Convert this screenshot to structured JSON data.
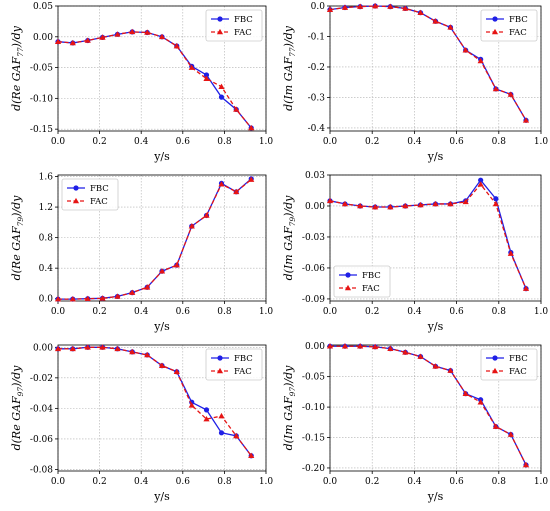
{
  "colors": {
    "fbc": "#1f1fe6",
    "fac": "#e61414"
  },
  "chart_data": [
    {
      "type": "line",
      "ylabel": {
        "pre": "d(Re GAF",
        "sub": "77",
        "post": ")/dy"
      },
      "xlabel": "y/s",
      "xlim": [
        0,
        1.0
      ],
      "ylim": [
        -0.153,
        0.05
      ],
      "xticks": [
        "0.0",
        "0.2",
        "0.4",
        "0.6",
        "0.8",
        "1.0"
      ],
      "yticks": [
        "0.05",
        "0.00",
        "-0.05",
        "-0.10",
        "-0.15"
      ],
      "legend": "top-right",
      "x": [
        0,
        0.071,
        0.143,
        0.214,
        0.286,
        0.357,
        0.429,
        0.5,
        0.571,
        0.643,
        0.714,
        0.786,
        0.857,
        0.929
      ],
      "series": [
        {
          "name": "FBC",
          "values": [
            -0.008,
            -0.01,
            -0.006,
            -0.001,
            0.004,
            0.008,
            0.007,
            0.0,
            -0.015,
            -0.048,
            -0.062,
            -0.098,
            -0.118,
            -0.148
          ]
        },
        {
          "name": "FAC",
          "values": [
            -0.008,
            -0.01,
            -0.006,
            -0.001,
            0.004,
            0.008,
            0.007,
            0.0,
            -0.015,
            -0.05,
            -0.068,
            -0.081,
            -0.118,
            -0.148
          ]
        }
      ]
    },
    {
      "type": "line",
      "ylabel": {
        "pre": "d(Im GAF",
        "sub": "77",
        "post": ")/dy"
      },
      "xlabel": "y/s",
      "xlim": [
        0,
        1.0
      ],
      "ylim": [
        -0.41,
        0.0
      ],
      "xticks": [
        "0.0",
        "0.2",
        "0.4",
        "0.6",
        "0.8",
        "1.0"
      ],
      "yticks": [
        "0.0",
        "-0.1",
        "-0.2",
        "-0.3",
        "-0.4"
      ],
      "legend": "top-right",
      "x": [
        0,
        0.071,
        0.143,
        0.214,
        0.286,
        0.357,
        0.429,
        0.5,
        0.571,
        0.643,
        0.714,
        0.786,
        0.857,
        0.929
      ],
      "series": [
        {
          "name": "FBC",
          "values": [
            -0.012,
            -0.005,
            -0.002,
            0.0,
            -0.002,
            -0.008,
            -0.022,
            -0.05,
            -0.07,
            -0.145,
            -0.175,
            -0.272,
            -0.29,
            -0.375
          ]
        },
        {
          "name": "FAC",
          "values": [
            -0.012,
            -0.005,
            -0.002,
            0.0,
            -0.002,
            -0.008,
            -0.022,
            -0.05,
            -0.07,
            -0.145,
            -0.18,
            -0.272,
            -0.29,
            -0.375
          ]
        }
      ]
    },
    {
      "type": "line",
      "ylabel": {
        "pre": "d(Re GAF",
        "sub": "79",
        "post": ")/dy"
      },
      "xlabel": "y/s",
      "xlim": [
        0,
        1.0
      ],
      "ylim": [
        -0.03,
        1.62
      ],
      "xticks": [
        "0.0",
        "0.2",
        "0.4",
        "0.6",
        "0.8",
        "1.0"
      ],
      "yticks": [
        "1.6",
        "1.2",
        "0.8",
        "0.4",
        "0.0"
      ],
      "legend": "top-left",
      "x": [
        0,
        0.071,
        0.143,
        0.214,
        0.286,
        0.357,
        0.429,
        0.5,
        0.571,
        0.643,
        0.714,
        0.786,
        0.857,
        0.929
      ],
      "series": [
        {
          "name": "FBC",
          "values": [
            -0.005,
            -0.005,
            0.0,
            0.005,
            0.03,
            0.08,
            0.15,
            0.36,
            0.44,
            0.95,
            1.09,
            1.51,
            1.4,
            1.57
          ]
        },
        {
          "name": "FAC",
          "values": [
            -0.005,
            -0.005,
            0.0,
            0.005,
            0.03,
            0.08,
            0.15,
            0.36,
            0.44,
            0.95,
            1.09,
            1.5,
            1.4,
            1.56
          ]
        }
      ]
    },
    {
      "type": "line",
      "ylabel": {
        "pre": "d(Im GAF",
        "sub": "79",
        "post": ")/dy"
      },
      "xlabel": "y/s",
      "xlim": [
        0,
        1.0
      ],
      "ylim": [
        -0.092,
        0.03
      ],
      "xticks": [
        "0.0",
        "0.2",
        "0.4",
        "0.6",
        "0.8",
        "1.0"
      ],
      "yticks": [
        "0.03",
        "0.00",
        "-0.03",
        "-0.06",
        "-0.09"
      ],
      "legend": "bottom-left",
      "x": [
        0,
        0.071,
        0.143,
        0.214,
        0.286,
        0.357,
        0.429,
        0.5,
        0.571,
        0.643,
        0.714,
        0.786,
        0.857,
        0.929
      ],
      "series": [
        {
          "name": "FBC",
          "values": [
            0.005,
            0.002,
            0.0,
            -0.001,
            -0.001,
            0.0,
            0.001,
            0.002,
            0.002,
            0.005,
            0.025,
            0.007,
            -0.045,
            -0.08
          ]
        },
        {
          "name": "FAC",
          "values": [
            0.005,
            0.002,
            0.0,
            -0.001,
            -0.001,
            0.0,
            0.001,
            0.002,
            0.002,
            0.004,
            0.021,
            0.002,
            -0.046,
            -0.08
          ]
        }
      ]
    },
    {
      "type": "line",
      "ylabel": {
        "pre": "d(Re GAF",
        "sub": "97",
        "post": ")/dy"
      },
      "xlabel": "y/s",
      "xlim": [
        0,
        1.0
      ],
      "ylim": [
        -0.081,
        0.0015
      ],
      "xticks": [
        "0.0",
        "0.2",
        "0.4",
        "0.6",
        "0.8",
        "1.0"
      ],
      "yticks": [
        "0.00",
        "-0.02",
        "-0.04",
        "-0.06",
        "-0.08"
      ],
      "legend": "top-right",
      "x": [
        0,
        0.071,
        0.143,
        0.214,
        0.286,
        0.357,
        0.429,
        0.5,
        0.571,
        0.643,
        0.714,
        0.786,
        0.857,
        0.929
      ],
      "series": [
        {
          "name": "FBC",
          "values": [
            -0.001,
            -0.001,
            0.0,
            0.0,
            -0.001,
            -0.003,
            -0.005,
            -0.012,
            -0.016,
            -0.036,
            -0.041,
            -0.056,
            -0.058,
            -0.071
          ]
        },
        {
          "name": "FAC",
          "values": [
            -0.001,
            -0.001,
            0.0,
            0.0,
            -0.001,
            -0.003,
            -0.005,
            -0.012,
            -0.016,
            -0.038,
            -0.047,
            -0.045,
            -0.058,
            -0.071
          ]
        }
      ]
    },
    {
      "type": "line",
      "ylabel": {
        "pre": "d(Im GAF",
        "sub": "97",
        "post": ")/dy"
      },
      "xlabel": "y/s",
      "xlim": [
        0,
        1.0
      ],
      "ylim": [
        -0.205,
        0.002
      ],
      "xticks": [
        "0.0",
        "0.2",
        "0.4",
        "0.6",
        "0.8",
        "1.0"
      ],
      "yticks": [
        "0.00",
        "-0.05",
        "-0.10",
        "-0.15",
        "-0.20"
      ],
      "legend": "top-right",
      "x": [
        0,
        0.071,
        0.143,
        0.214,
        0.286,
        0.357,
        0.429,
        0.5,
        0.571,
        0.643,
        0.714,
        0.786,
        0.857,
        0.929
      ],
      "series": [
        {
          "name": "FBC",
          "values": [
            0.0,
            0.0,
            0.0,
            -0.001,
            -0.004,
            -0.01,
            -0.017,
            -0.033,
            -0.04,
            -0.078,
            -0.088,
            -0.132,
            -0.145,
            -0.195
          ]
        },
        {
          "name": "FAC",
          "values": [
            0.0,
            0.0,
            0.0,
            -0.001,
            -0.004,
            -0.01,
            -0.017,
            -0.033,
            -0.04,
            -0.078,
            -0.092,
            -0.132,
            -0.145,
            -0.195
          ]
        }
      ]
    }
  ]
}
